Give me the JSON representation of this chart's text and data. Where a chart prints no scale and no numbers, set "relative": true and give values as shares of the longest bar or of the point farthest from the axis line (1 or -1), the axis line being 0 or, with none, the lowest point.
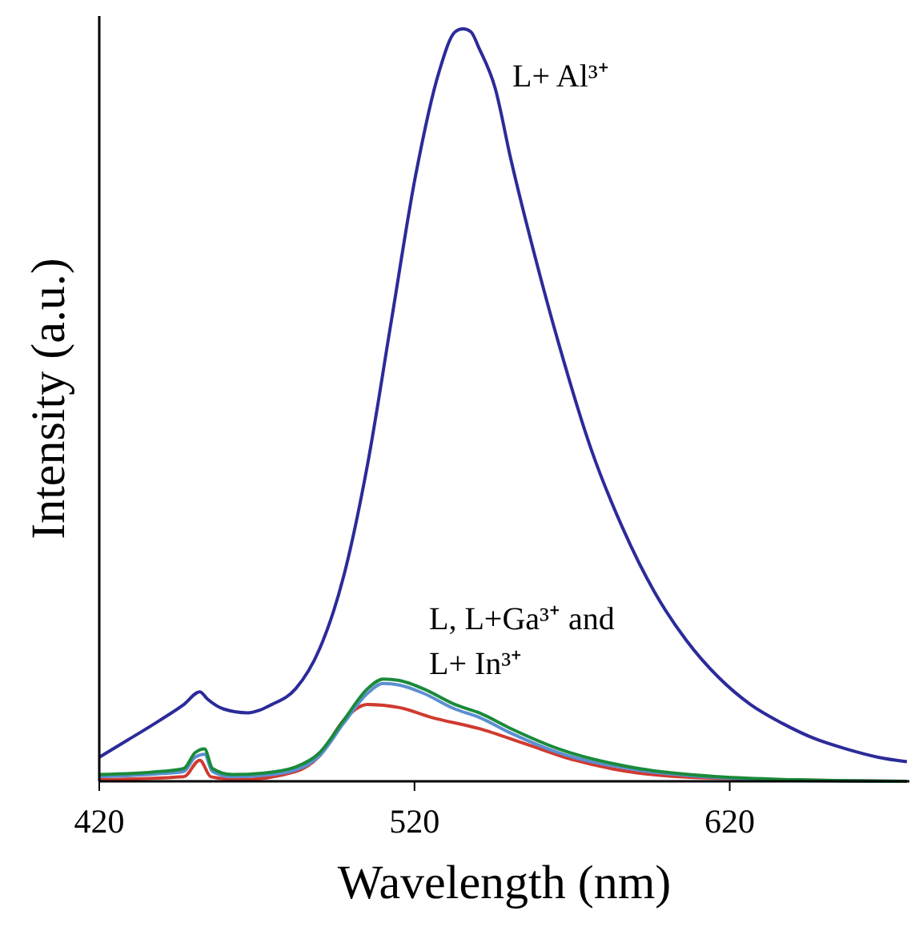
{
  "chart_data": {
    "type": "line",
    "relative": true,
    "xlabel": "Wavelength (nm)",
    "ylabel": "Intensity (a.u.)",
    "xlim": [
      420,
      677
    ],
    "xticks": [
      420,
      520,
      620
    ],
    "grid": false,
    "marker": "none",
    "line_style": "solid",
    "series": [
      {
        "color": "#2b2b9a",
        "x": [
          420,
          429.1,
          439.2,
          446.8,
          451.9,
          454.4,
          459.5,
          467.1,
          474.7,
          482.3,
          489.9,
          497.5,
          505.1,
          512.7,
          520.3,
          527.8,
          532.9,
          535.4,
          537.9,
          540.5,
          545.6,
          550.6,
          558.2,
          565.8,
          575.9,
          586.1,
          596.2,
          606.3,
          616.5,
          626.6,
          636.7,
          646.8,
          657,
          667.1,
          676.2
        ],
        "values": [
          0.032,
          0.055,
          0.081,
          0.102,
          0.119,
          0.109,
          0.096,
          0.091,
          0.102,
          0.123,
          0.176,
          0.272,
          0.421,
          0.613,
          0.804,
          0.943,
          0.996,
          1,
          0.996,
          0.974,
          0.921,
          0.826,
          0.698,
          0.581,
          0.443,
          0.336,
          0.251,
          0.187,
          0.138,
          0.102,
          0.077,
          0.057,
          0.043,
          0.032,
          0.026
        ]
      },
      {
        "color": "#d03a30",
        "x": [
          420,
          446.8,
          451.9,
          455.4,
          464.6,
          482.3,
          489.9,
          497.5,
          505.1,
          515.2,
          525.3,
          540.5,
          555.7,
          570.9,
          591.1,
          616.5,
          676.2
        ],
        "values": [
          0.002,
          0.006,
          0.028,
          0.006,
          0.002,
          0.013,
          0.034,
          0.081,
          0.102,
          0.098,
          0.085,
          0.07,
          0.049,
          0.028,
          0.011,
          0.004,
          0
        ]
      },
      {
        "color": "#5b8fd0",
        "x": [
          420,
          439.2,
          446.8,
          450.4,
          453.4,
          455.9,
          462,
          472.2,
          482.3,
          489.9,
          497.5,
          505.1,
          510.1,
          515.2,
          522.8,
          532.9,
          540.5,
          550.6,
          565.8,
          591.1,
          616.5,
          641.8,
          676.2
        ],
        "values": [
          0.006,
          0.01,
          0.013,
          0.032,
          0.036,
          0.013,
          0.006,
          0.008,
          0.015,
          0.034,
          0.077,
          0.117,
          0.13,
          0.128,
          0.117,
          0.096,
          0.085,
          0.064,
          0.038,
          0.015,
          0.005,
          0.001,
          0
        ]
      },
      {
        "color": "#1a8a3a",
        "x": [
          420,
          439.2,
          446.8,
          450.4,
          453.4,
          455.9,
          462,
          472.2,
          482.3,
          489.9,
          497.5,
          505.1,
          510.1,
          515.2,
          522.8,
          532.9,
          540.5,
          550.6,
          565.8,
          591.1,
          616.5,
          641.8,
          676.2
        ],
        "values": [
          0.009,
          0.013,
          0.017,
          0.038,
          0.043,
          0.017,
          0.009,
          0.011,
          0.019,
          0.038,
          0.081,
          0.123,
          0.136,
          0.134,
          0.123,
          0.102,
          0.091,
          0.07,
          0.043,
          0.017,
          0.006,
          0.002,
          0
        ]
      }
    ],
    "annotations": [
      "L+ Al³⁺",
      "L, L+Ga³⁺ and\nL+ In³⁺"
    ]
  }
}
